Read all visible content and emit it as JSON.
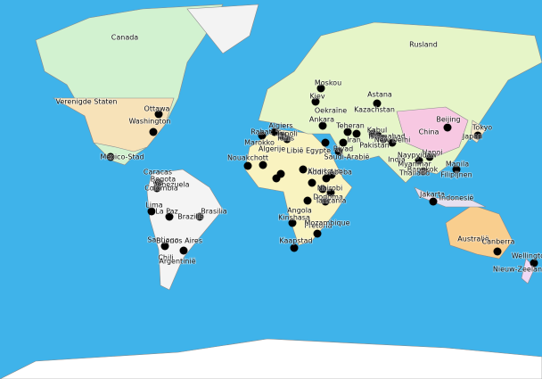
{
  "labels": [
    "Canada",
    "Verenigde Staten",
    "Ottawa",
    "Washington",
    "Mexico-Stad",
    "Caracas",
    "Bogota",
    "Venezuela",
    "Colombia",
    "Lima",
    "La Paz",
    "Brasilia",
    "Brazilië",
    "Santiago",
    "Buenos Aires",
    "Chili",
    "Argentinië",
    "Rusland",
    "Moskou",
    "Kiev",
    "Oekraïne",
    "Astana",
    "Kazachstan",
    "Ankara",
    "Algiers",
    "Tunis",
    "Rabat",
    "Marokko",
    "Algerije",
    "Tripoli",
    "Libië",
    "Egypte",
    "Teheran",
    "Iran",
    "Riyad",
    "Saudi-Arabië",
    "Kabul",
    "Islamabad",
    "Pakistan",
    "New Delhi",
    "India",
    "Beijing",
    "China",
    "Tokyo",
    "Japan",
    "Hanoi",
    "Naypyidaw",
    "Myanmar",
    "Bangkok",
    "Thailand",
    "Manila",
    "Filipijnen",
    "Jakarta",
    "Indonesië",
    "Australië",
    "Canberra",
    "Wellington",
    "Nieuw-Zeeland",
    "Nouakchott",
    "Khartoum",
    "Addis Abeba",
    "Nairobi",
    "Kinshasa",
    "Angola",
    "Dodoma",
    "Tanzania",
    "Pretoria",
    "Kaapstad",
    "Mozambique"
  ]
}
